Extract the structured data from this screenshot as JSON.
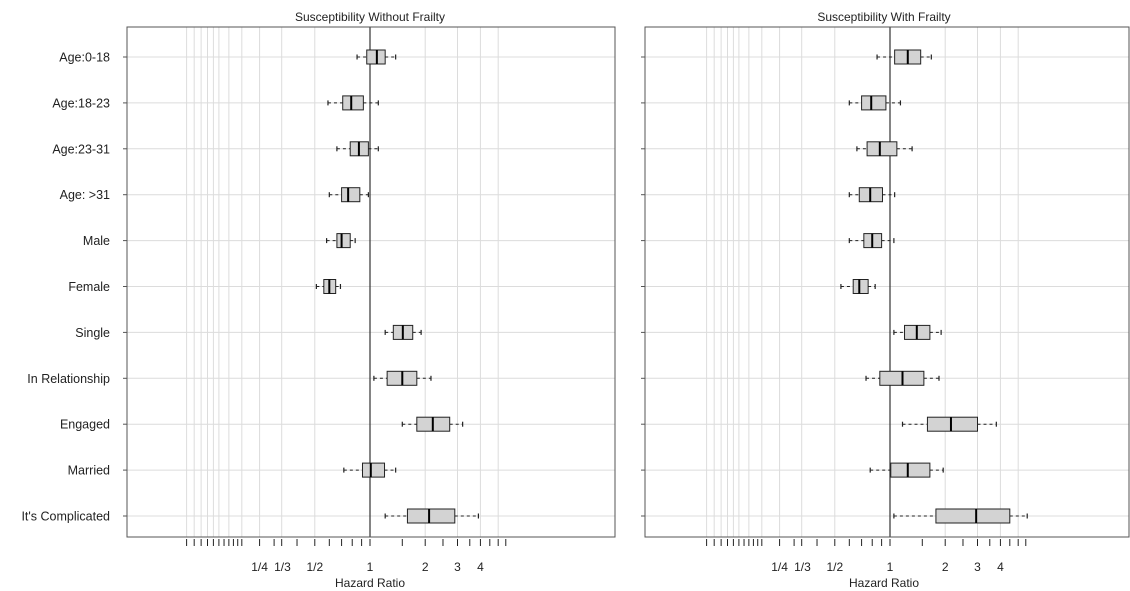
{
  "chart_data": {
    "type": "boxplot",
    "xlabel": "Hazard Ratio",
    "x_scale": "log",
    "xlim": [
      0.1,
      5.7
    ],
    "x_tick_labels": [
      "1/4",
      "1/3",
      "1/2",
      "1",
      "2",
      "3",
      "4"
    ],
    "x_tick_values": [
      0.25,
      0.333,
      0.5,
      1,
      2,
      3,
      4
    ],
    "reference_line": 1,
    "grid": true,
    "categories": [
      "Age:0-18",
      "Age:18-23",
      "Age:23-31",
      "Age: >31",
      "Male",
      "Female",
      "Single",
      "In Relationship",
      "Engaged",
      "Married",
      "It's Complicated"
    ],
    "panels": [
      {
        "title": "Susceptibility Without Frailty",
        "boxes": [
          {
            "whisker_low": 0.85,
            "q1": 0.96,
            "median": 1.09,
            "q3": 1.21,
            "whisker_high": 1.38
          },
          {
            "whisker_low": 0.59,
            "q1": 0.71,
            "median": 0.79,
            "q3": 0.92,
            "whisker_high": 1.11
          },
          {
            "whisker_low": 0.66,
            "q1": 0.78,
            "median": 0.87,
            "q3": 0.98,
            "whisker_high": 1.11
          },
          {
            "whisker_low": 0.6,
            "q1": 0.7,
            "median": 0.76,
            "q3": 0.88,
            "whisker_high": 0.98
          },
          {
            "whisker_low": 0.58,
            "q1": 0.66,
            "median": 0.7,
            "q3": 0.78,
            "whisker_high": 0.83
          },
          {
            "whisker_low": 0.51,
            "q1": 0.56,
            "median": 0.6,
            "q3": 0.65,
            "whisker_high": 0.69
          },
          {
            "whisker_low": 1.21,
            "q1": 1.34,
            "median": 1.51,
            "q3": 1.71,
            "whisker_high": 1.9
          },
          {
            "whisker_low": 1.05,
            "q1": 1.24,
            "median": 1.5,
            "q3": 1.8,
            "whisker_high": 2.15
          },
          {
            "whisker_low": 1.5,
            "q1": 1.8,
            "median": 2.2,
            "q3": 2.72,
            "whisker_high": 3.2
          },
          {
            "whisker_low": 0.72,
            "q1": 0.91,
            "median": 1.01,
            "q3": 1.2,
            "whisker_high": 1.38
          },
          {
            "whisker_low": 1.21,
            "q1": 1.6,
            "median": 2.1,
            "q3": 2.9,
            "whisker_high": 3.9
          }
        ]
      },
      {
        "title": "Susceptibility With Frailty",
        "boxes": [
          {
            "whisker_low": 0.85,
            "q1": 1.06,
            "median": 1.25,
            "q3": 1.47,
            "whisker_high": 1.68
          },
          {
            "whisker_low": 0.6,
            "q1": 0.7,
            "median": 0.79,
            "q3": 0.95,
            "whisker_high": 1.14
          },
          {
            "whisker_low": 0.66,
            "q1": 0.75,
            "median": 0.88,
            "q3": 1.09,
            "whisker_high": 1.32
          },
          {
            "whisker_low": 0.6,
            "q1": 0.68,
            "median": 0.78,
            "q3": 0.91,
            "whisker_high": 1.06
          },
          {
            "whisker_low": 0.6,
            "q1": 0.72,
            "median": 0.8,
            "q3": 0.9,
            "whisker_high": 1.05
          },
          {
            "whisker_low": 0.54,
            "q1": 0.63,
            "median": 0.68,
            "q3": 0.76,
            "whisker_high": 0.83
          },
          {
            "whisker_low": 1.05,
            "q1": 1.2,
            "median": 1.4,
            "q3": 1.65,
            "whisker_high": 1.9
          },
          {
            "whisker_low": 0.74,
            "q1": 0.88,
            "median": 1.17,
            "q3": 1.53,
            "whisker_high": 1.85
          },
          {
            "whisker_low": 1.17,
            "q1": 1.6,
            "median": 2.15,
            "q3": 3.0,
            "whisker_high": 3.8
          },
          {
            "whisker_low": 0.78,
            "q1": 1.01,
            "median": 1.25,
            "q3": 1.65,
            "whisker_high": 1.95
          },
          {
            "whisker_low": 1.05,
            "q1": 1.78,
            "median": 2.95,
            "q3": 4.5,
            "whisker_high": 5.6
          }
        ]
      }
    ]
  },
  "colors": {
    "box_fill": "#d3d3d3",
    "stroke": "#222222",
    "grid": "#dcdcdc",
    "axis": "#555555"
  }
}
